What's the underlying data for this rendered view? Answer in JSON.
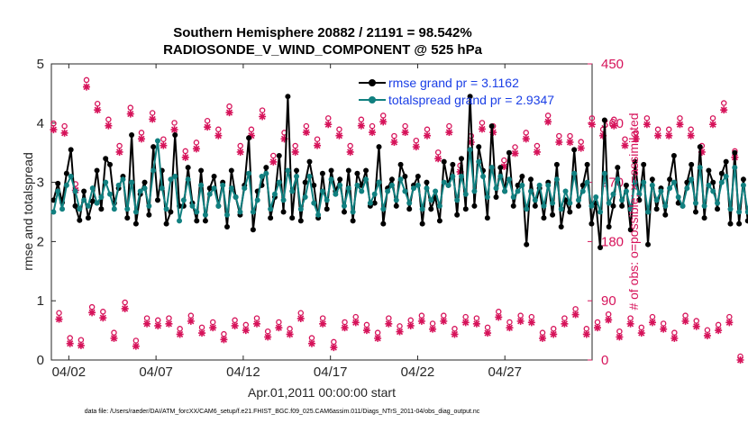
{
  "chart_data": {
    "type": "line",
    "title": "Southern Hemisphere 20882 / 21191 = 98.542%",
    "subtitle": "RADIOSONDE_V_WIND_COMPONENT @ 525 hPa",
    "xlabel": "Apr.01,2011 00:00:00 start",
    "ylabel": "rmse and totalspread",
    "y2label": "# of obs: o=possible; ×=assimilated",
    "footer": "data file: /Users/raeder/DAI/ATM_forcXX/CAM6_setup/f.e21.FHIST_BGC.f09_025.CAM6assim.011/Diags_NTrS_2011-04/obs_diag_output.nc",
    "xlim": [
      1,
      32
    ],
    "ylim": [
      0,
      5
    ],
    "y2lim": [
      0,
      450
    ],
    "xticks": [
      2,
      7,
      12,
      17,
      22,
      27
    ],
    "xtick_labels": [
      "04/02",
      "04/07",
      "04/12",
      "04/17",
      "04/22",
      "04/27"
    ],
    "yticks": [
      "0",
      "1",
      "2",
      "3",
      "4",
      "5"
    ],
    "y2ticks": [
      "0",
      "90",
      "180",
      "270",
      "360",
      "450"
    ],
    "legend": [
      "rmse grand pr = 3.1162",
      "totalspread grand pr = 2.9347"
    ],
    "colors": {
      "rmse": "#000000",
      "spread": "#118080",
      "obs": "#d6135a",
      "legend_text": "#1a3ee6"
    },
    "x_start": 1.125,
    "x_step": 0.25,
    "series": [
      {
        "name": "rmse",
        "values": [
          2.7,
          2.98,
          2.66,
          3.15,
          3.55,
          2.6,
          2.36,
          2.85,
          2.4,
          2.68,
          3.2,
          2.55,
          3.4,
          3.3,
          2.65,
          2.9,
          3.1,
          2.4,
          3.8,
          2.3,
          2.8,
          3.0,
          2.45,
          3.6,
          2.7,
          3.2,
          2.3,
          2.5,
          3.8,
          2.6,
          2.6,
          3.25,
          2.65,
          2.35,
          3.2,
          2.35,
          2.9,
          3.1,
          2.6,
          3.0,
          2.25,
          3.2,
          2.75,
          2.45,
          2.95,
          3.75,
          2.2,
          2.85,
          2.95,
          3.25,
          2.4,
          2.75,
          3.45,
          2.5,
          4.45,
          2.4,
          3.2,
          2.35,
          3.0,
          3.35,
          2.95,
          2.4,
          3.15,
          2.55,
          3.2,
          2.85,
          3.05,
          2.5,
          3.2,
          2.35,
          3.15,
          2.95,
          3.2,
          2.6,
          2.65,
          3.6,
          2.3,
          2.9,
          3.05,
          2.6,
          3.3,
          3.1,
          2.55,
          2.95,
          3.1,
          2.3,
          3.0,
          2.55,
          2.75,
          2.35,
          3.35,
          2.95,
          3.3,
          2.45,
          3.4,
          2.55,
          4.45,
          2.6,
          3.6,
          3.2,
          2.4,
          3.95,
          2.75,
          3.25,
          2.85,
          3.5,
          2.6,
          2.95,
          3.1,
          1.95,
          3.05,
          2.6,
          2.9,
          2.4,
          3.0,
          2.45,
          3.3,
          2.25,
          2.7,
          2.5,
          3.55,
          2.6,
          2.95,
          3.3,
          2.3,
          2.65,
          1.9,
          4.05,
          2.25,
          2.6,
          3.25,
          2.6,
          2.95,
          2.2,
          3.35,
          2.7,
          3.3,
          1.95,
          3.05,
          2.55,
          2.9,
          2.45,
          3.05,
          3.45,
          2.65,
          2.6,
          3.0,
          3.3,
          2.5,
          3.6,
          2.4,
          3.2,
          3.0,
          2.55,
          3.15,
          3.35,
          2.3,
          3.5,
          2.3,
          3.05,
          2.35,
          3.1,
          2.35,
          2.4,
          3.35,
          2.25,
          2.95,
          4.1,
          2.3,
          3.35
        ]
      },
      {
        "name": "totalspread",
        "values": [
          2.5,
          2.85,
          2.55,
          2.95,
          3.1,
          2.85,
          2.55,
          2.7,
          2.6,
          2.9,
          2.65,
          2.75,
          3.0,
          2.8,
          2.55,
          2.95,
          3.05,
          2.55,
          3.0,
          2.5,
          2.85,
          2.9,
          2.6,
          3.2,
          3.7,
          2.9,
          2.55,
          3.05,
          3.1,
          2.35,
          2.7,
          3.05,
          2.6,
          2.5,
          2.95,
          2.45,
          2.8,
          2.9,
          2.6,
          2.95,
          2.45,
          2.9,
          2.75,
          2.5,
          2.9,
          3.15,
          2.5,
          2.7,
          3.1,
          3.15,
          2.55,
          2.8,
          3.0,
          2.7,
          3.2,
          2.85,
          3.1,
          2.55,
          2.75,
          3.1,
          2.65,
          2.45,
          2.85,
          2.7,
          3.05,
          2.8,
          2.95,
          2.6,
          2.9,
          2.5,
          2.95,
          2.85,
          3.05,
          2.65,
          2.8,
          3.0,
          2.55,
          2.85,
          2.95,
          2.7,
          3.05,
          2.85,
          2.65,
          2.9,
          2.95,
          2.55,
          2.9,
          2.7,
          2.85,
          2.6,
          3.0,
          2.95,
          3.1,
          2.7,
          3.1,
          2.8,
          3.55,
          2.85,
          3.35,
          3.1,
          2.75,
          3.25,
          2.9,
          3.1,
          2.85,
          3.05,
          2.75,
          2.85,
          2.95,
          2.55,
          2.85,
          2.7,
          2.95,
          2.6,
          2.95,
          2.65,
          3.05,
          2.55,
          2.85,
          2.65,
          3.15,
          2.7,
          2.85,
          3.0,
          2.6,
          2.75,
          2.5,
          3.15,
          2.65,
          2.8,
          3.05,
          2.7,
          2.85,
          2.55,
          3.0,
          2.8,
          3.0,
          2.5,
          2.95,
          2.7,
          2.85,
          2.6,
          2.9,
          3.0,
          2.75,
          2.6,
          2.9,
          3.05,
          2.65,
          3.25,
          2.6,
          2.95,
          2.85,
          2.65,
          3.0,
          3.1,
          2.55,
          3.25,
          2.5,
          2.95,
          2.5,
          2.95,
          2.5,
          2.6,
          3.05,
          2.45,
          2.8,
          3.2,
          2.6,
          2.75
        ]
      },
      {
        "name": "obs_possible",
        "axis": "right",
        "values": [
          354,
          66,
          350,
          28,
          262,
          25,
          420,
          75,
          384,
          68,
          360,
          36,
          320,
          82,
          378,
          24,
          340,
          58,
          370,
          55,
          330,
          58,
          355,
          42,
          312,
          62,
          325,
          44,
          358,
          52,
          345,
          34,
          380,
          55,
          320,
          48,
          345,
          58,
          374,
          38,
          305,
          52,
          340,
          42,
          320,
          66,
          350,
          28,
          330,
          58,
          362,
          22,
          345,
          52,
          320,
          60,
          360,
          48,
          350,
          36,
          366,
          58,
          335,
          46,
          350,
          55,
          328,
          62,
          345,
          50,
          310,
          62,
          350,
          42,
          290,
          60,
          335,
          58,
          355,
          44,
          350,
          68,
          298,
          52,
          318,
          62,
          340,
          60,
          320,
          36,
          366,
          42,
          335,
          58,
          335,
          72,
          326,
          42,
          362,
          52,
          345,
          64,
          360,
          38,
          330,
          58,
          340,
          44,
          362,
          60,
          345,
          50,
          345,
          36,
          362,
          62,
          345,
          54,
          320,
          40,
          362,
          48,
          385,
          60,
          312,
          0
        ]
      },
      {
        "name": "obs_assimilated",
        "axis": "right",
        "values": [
          350,
          62,
          345,
          25,
          258,
          22,
          415,
          72,
          380,
          64,
          356,
          33,
          316,
          78,
          374,
          21,
          336,
          55,
          366,
          52,
          326,
          55,
          350,
          39,
          308,
          59,
          321,
          41,
          354,
          49,
          341,
          31,
          376,
          52,
          316,
          45,
          341,
          55,
          370,
          35,
          301,
          49,
          336,
          39,
          316,
          63,
          346,
          25,
          326,
          55,
          358,
          19,
          341,
          49,
          316,
          57,
          356,
          45,
          346,
          33,
          362,
          55,
          331,
          43,
          346,
          52,
          324,
          59,
          341,
          47,
          306,
          59,
          346,
          39,
          286,
          57,
          331,
          55,
          351,
          41,
          346,
          65,
          294,
          49,
          314,
          59,
          336,
          57,
          316,
          33,
          362,
          39,
          331,
          55,
          331,
          69,
          322,
          39,
          358,
          49,
          341,
          61,
          356,
          35,
          326,
          55,
          336,
          41,
          358,
          57,
          341,
          47,
          341,
          33,
          358,
          59,
          341,
          51,
          316,
          37,
          358,
          45,
          380,
          57,
          308,
          0
        ]
      }
    ]
  }
}
